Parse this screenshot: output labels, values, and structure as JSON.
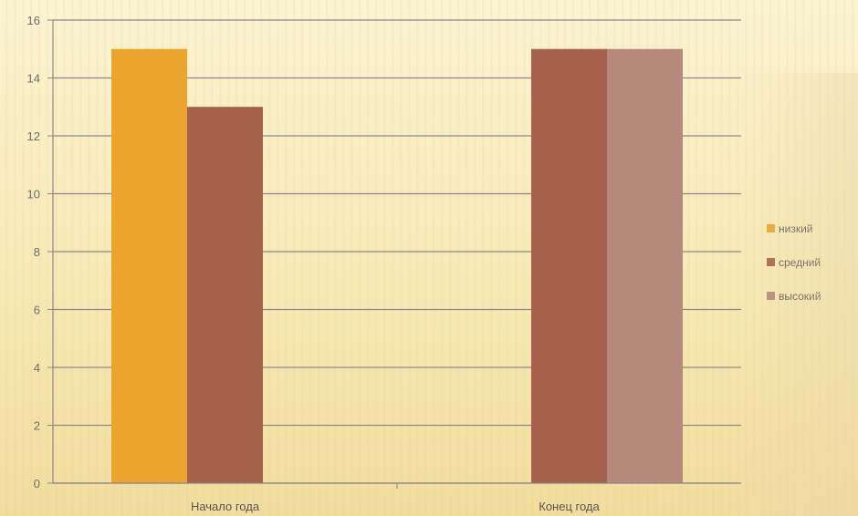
{
  "chart_data": {
    "type": "bar",
    "categories": [
      "Начало года",
      "Конец года"
    ],
    "series": [
      {
        "name": "низкий",
        "values": [
          15,
          0
        ],
        "color": "#eba42e"
      },
      {
        "name": "средний",
        "values": [
          13,
          15
        ],
        "color": "#a5614b"
      },
      {
        "name": "высокий",
        "values": [
          0,
          15
        ],
        "color": "#b58a7c"
      }
    ],
    "ylim": [
      0,
      16
    ],
    "yticks": [
      0,
      2,
      4,
      6,
      8,
      10,
      12,
      14,
      16
    ],
    "grid": true,
    "legend_position": "right"
  }
}
